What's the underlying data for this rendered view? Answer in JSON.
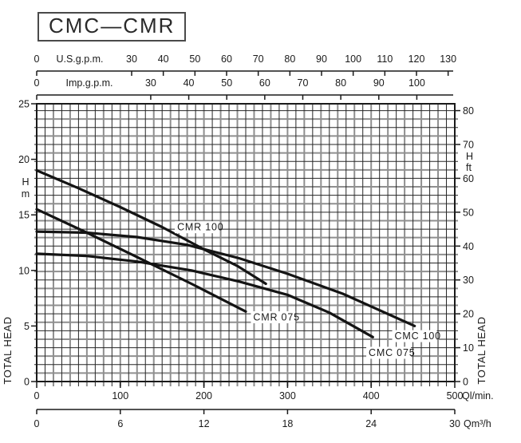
{
  "title": "CMC—CMR",
  "colors": {
    "background": "#ffffff",
    "line": "#141414",
    "grid_minor": "#262626",
    "grid_major": "#8f8f8f",
    "text": "#1a1a1a",
    "title_border": "#4a4a4a"
  },
  "chart_data": {
    "type": "line",
    "title": "CMC—CMR",
    "grid": "on",
    "x_axis_primary": {
      "label": "Ql/min.",
      "range": [
        0,
        500
      ]
    },
    "y_axis_primary": {
      "label": "TOTAL HEAD",
      "unit": "H m",
      "range": [
        0,
        25
      ]
    },
    "x_axes": [
      {
        "id": "us_gpm",
        "label": "U.S.g.p.m.",
        "ticks": [
          0,
          30,
          40,
          50,
          60,
          70,
          80,
          90,
          100,
          110,
          120,
          130
        ],
        "lmin_per_unit": 3.785
      },
      {
        "id": "imp_gpm",
        "label": "Imp.g.p.m.",
        "ticks": [
          0,
          30,
          40,
          50,
          60,
          70,
          80,
          90,
          100
        ],
        "lmin_per_unit": 4.546
      },
      {
        "id": "lmin",
        "label": "Ql/min.",
        "ticks": [
          0,
          100,
          200,
          300,
          400,
          500
        ],
        "lmin_per_unit": 1
      },
      {
        "id": "m3h",
        "label": "Qm³/h",
        "ticks": [
          0,
          6,
          12,
          18,
          24,
          30
        ],
        "lmin_per_unit": 16.6667
      }
    ],
    "y_axes": [
      {
        "id": "head_m",
        "unit_lines": [
          "H",
          "m"
        ],
        "label": "TOTAL HEAD",
        "ticks": [
          0,
          5,
          10,
          15,
          20,
          25
        ],
        "range": [
          0,
          25
        ]
      },
      {
        "id": "head_ft",
        "unit_lines": [
          "H",
          "ft"
        ],
        "label": "TOTAL HEAD",
        "ticks": [
          0,
          10,
          20,
          30,
          40,
          50,
          60,
          70,
          80
        ],
        "range": [
          0,
          82.02
        ]
      }
    ],
    "series": [
      {
        "name": "CMR 100",
        "points": [
          [
            0,
            19.0
          ],
          [
            50,
            17.4
          ],
          [
            100,
            15.7
          ],
          [
            150,
            13.9
          ],
          [
            200,
            11.9
          ],
          [
            240,
            10.4
          ],
          [
            274,
            8.8
          ]
        ],
        "label_at": [
          168,
          13.6
        ]
      },
      {
        "name": "CMR 075",
        "points": [
          [
            0,
            15.5
          ],
          [
            60,
            13.4
          ],
          [
            120,
            11.2
          ],
          [
            185,
            8.8
          ],
          [
            250,
            6.3
          ]
        ],
        "label_at": [
          259,
          5.5
        ]
      },
      {
        "name": "CMC 100",
        "points": [
          [
            0,
            13.5
          ],
          [
            60,
            13.4
          ],
          [
            120,
            13.0
          ],
          [
            180,
            12.3
          ],
          [
            242,
            11.1
          ],
          [
            300,
            9.7
          ],
          [
            366,
            7.9
          ],
          [
            452,
            5.0
          ]
        ],
        "label_at": [
          428,
          3.8
        ]
      },
      {
        "name": "CMC 075",
        "points": [
          [
            0,
            11.5
          ],
          [
            60,
            11.3
          ],
          [
            120,
            10.8
          ],
          [
            185,
            10.0
          ],
          [
            242,
            9.0
          ],
          [
            300,
            7.8
          ],
          [
            350,
            6.2
          ],
          [
            402,
            4.0
          ]
        ],
        "label_at": [
          397,
          2.3
        ]
      }
    ]
  }
}
